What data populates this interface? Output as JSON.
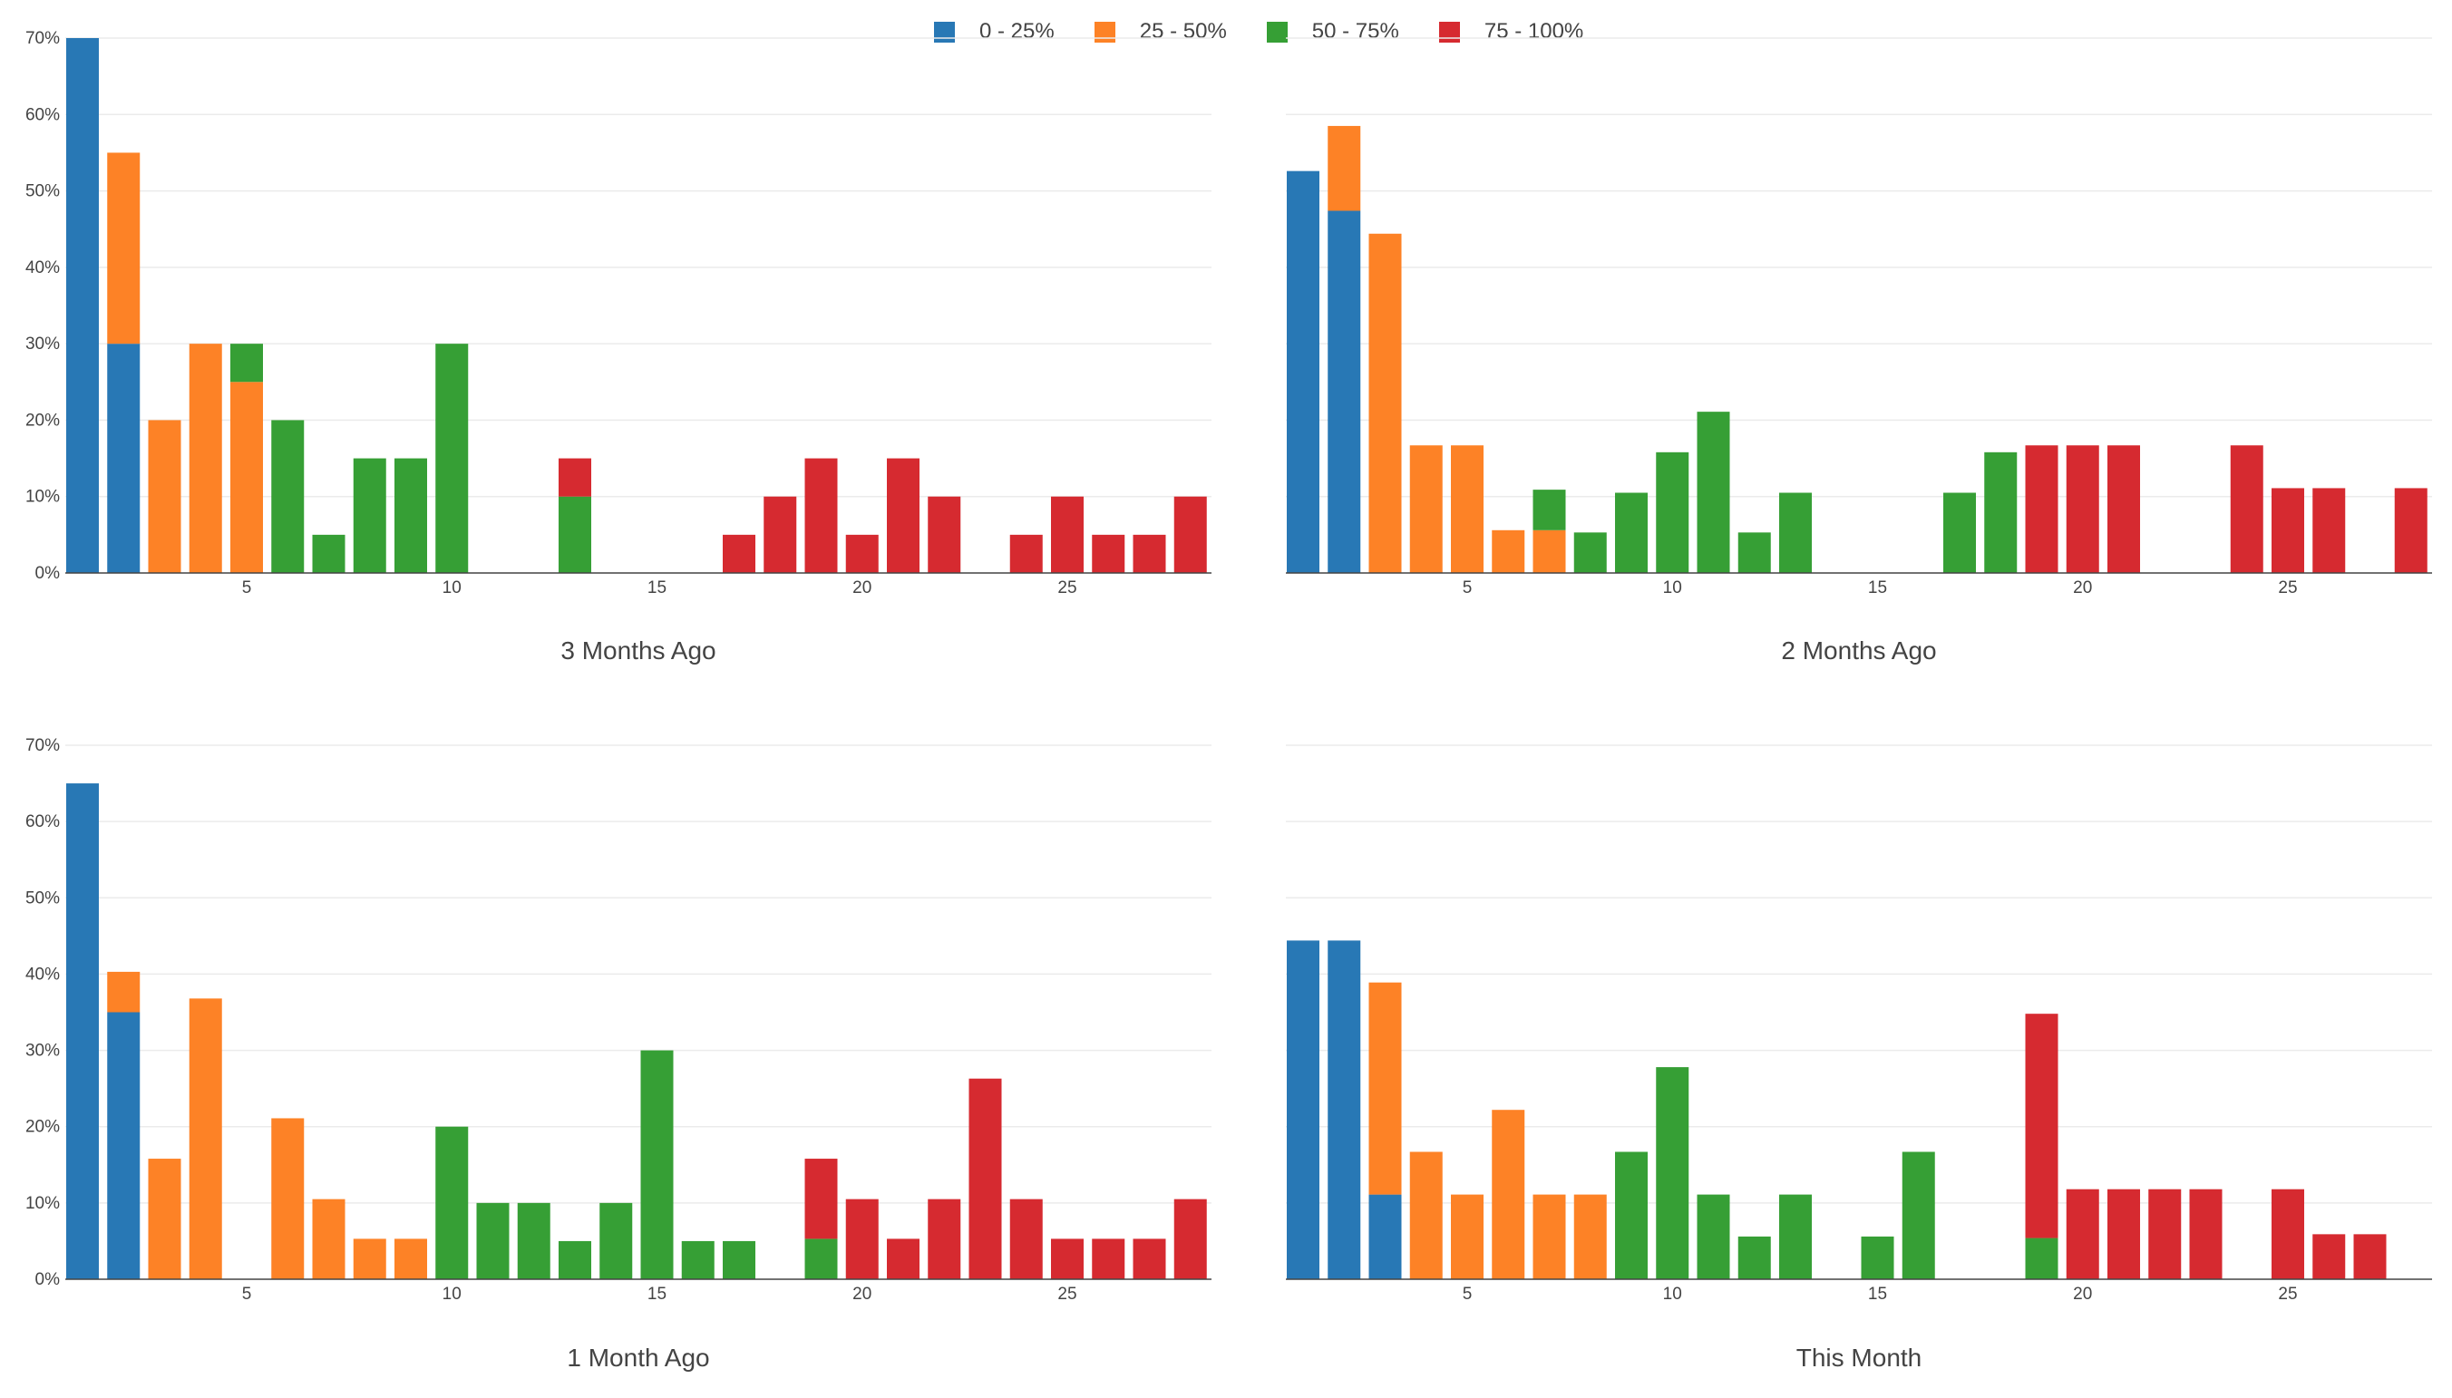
{
  "legend": {
    "items": [
      {
        "label": "0 - 25%",
        "color": "#2878b5"
      },
      {
        "label": "25 - 50%",
        "color": "#fd8226"
      },
      {
        "label": "50 - 75%",
        "color": "#369f35"
      },
      {
        "label": "75 - 100%",
        "color": "#d62a30"
      }
    ]
  },
  "chart_data": [
    {
      "type": "bar",
      "title": "3 Months Ago",
      "x": [
        1,
        2,
        3,
        4,
        5,
        6,
        7,
        8,
        9,
        10,
        11,
        12,
        13,
        14,
        15,
        16,
        17,
        18,
        19,
        20,
        21,
        22,
        23,
        24,
        25,
        26,
        27,
        28
      ],
      "x_ticks": [
        5,
        10,
        15,
        20,
        25
      ],
      "y_ticks": [
        "0%",
        "10%",
        "20%",
        "30%",
        "40%",
        "50%",
        "60%",
        "70%"
      ],
      "ylim": [
        0,
        70
      ],
      "barmode": "stack",
      "series": [
        {
          "name": "0 - 25%",
          "values": [
            70,
            30,
            0,
            0,
            0,
            0,
            0,
            0,
            0,
            0,
            0,
            0,
            0,
            0,
            0,
            0,
            0,
            0,
            0,
            0,
            0,
            0,
            0,
            0,
            0,
            0,
            0,
            0
          ]
        },
        {
          "name": "25 - 50%",
          "values": [
            0,
            25,
            20,
            30,
            25,
            0,
            0,
            0,
            0,
            0,
            0,
            0,
            0,
            0,
            0,
            0,
            0,
            0,
            0,
            0,
            0,
            0,
            0,
            0,
            0,
            0,
            0,
            0
          ]
        },
        {
          "name": "50 - 75%",
          "values": [
            0,
            0,
            0,
            0,
            5,
            20,
            5,
            15,
            15,
            30,
            0,
            0,
            10,
            0,
            0,
            0,
            0,
            0,
            0,
            0,
            0,
            0,
            0,
            0,
            0,
            0,
            0,
            0
          ]
        },
        {
          "name": "75 - 100%",
          "values": [
            0,
            0,
            0,
            0,
            0,
            0,
            0,
            0,
            0,
            0,
            0,
            0,
            5,
            0,
            0,
            0,
            5,
            10,
            15,
            5,
            15,
            10,
            0,
            5,
            10,
            5,
            5,
            10
          ]
        }
      ]
    },
    {
      "type": "bar",
      "title": "2 Months Ago",
      "x": [
        1,
        2,
        3,
        4,
        5,
        6,
        7,
        8,
        9,
        10,
        11,
        12,
        13,
        14,
        15,
        16,
        17,
        18,
        19,
        20,
        21,
        22,
        23,
        24,
        25,
        26,
        27,
        28
      ],
      "x_ticks": [
        5,
        10,
        15,
        20,
        25
      ],
      "ylim": [
        0,
        70
      ],
      "barmode": "stack",
      "series": [
        {
          "name": "0 - 25%",
          "values": [
            52.6,
            47.4,
            0,
            0,
            0,
            0,
            0,
            0,
            0,
            0,
            0,
            0,
            0,
            0,
            0,
            0,
            0,
            0,
            0,
            0,
            0,
            0,
            0,
            0,
            0,
            0,
            0,
            0
          ]
        },
        {
          "name": "25 - 50%",
          "values": [
            0,
            11.1,
            44.4,
            16.7,
            16.7,
            5.6,
            5.6,
            0,
            0,
            0,
            0,
            0,
            0,
            0,
            0,
            0,
            0,
            0,
            0,
            0,
            0,
            0,
            0,
            0,
            0,
            0,
            0,
            0
          ]
        },
        {
          "name": "50 - 75%",
          "values": [
            0,
            0,
            0,
            0,
            0,
            0,
            5.3,
            5.3,
            10.5,
            15.8,
            21.1,
            5.3,
            10.5,
            0,
            0,
            0,
            10.5,
            15.8,
            0,
            0,
            0,
            0,
            0,
            0,
            0,
            0,
            0,
            0
          ]
        },
        {
          "name": "75 - 100%",
          "values": [
            0,
            0,
            0,
            0,
            0,
            0,
            0,
            0,
            0,
            0,
            0,
            0,
            0,
            0,
            0,
            0,
            0,
            0,
            16.7,
            16.7,
            16.7,
            0,
            0,
            16.7,
            11.1,
            11.1,
            0,
            11.1
          ]
        }
      ]
    },
    {
      "type": "bar",
      "title": "1 Month Ago",
      "x": [
        1,
        2,
        3,
        4,
        5,
        6,
        7,
        8,
        9,
        10,
        11,
        12,
        13,
        14,
        15,
        16,
        17,
        18,
        19,
        20,
        21,
        22,
        23,
        24,
        25,
        26,
        27,
        28
      ],
      "x_ticks": [
        5,
        10,
        15,
        20,
        25
      ],
      "y_ticks": [
        "0%",
        "10%",
        "20%",
        "30%",
        "40%",
        "50%",
        "60%",
        "70%"
      ],
      "ylim": [
        0,
        70
      ],
      "barmode": "stack",
      "series": [
        {
          "name": "0 - 25%",
          "values": [
            65,
            35,
            0,
            0,
            0,
            0,
            0,
            0,
            0,
            0,
            0,
            0,
            0,
            0,
            0,
            0,
            0,
            0,
            0,
            0,
            0,
            0,
            0,
            0,
            0,
            0,
            0,
            0
          ]
        },
        {
          "name": "25 - 50%",
          "values": [
            0,
            5.3,
            15.8,
            36.8,
            0,
            21.1,
            10.5,
            5.3,
            5.3,
            0,
            0,
            0,
            0,
            0,
            0,
            0,
            0,
            0,
            0,
            0,
            0,
            0,
            0,
            0,
            0,
            0,
            0,
            0
          ]
        },
        {
          "name": "50 - 75%",
          "values": [
            0,
            0,
            0,
            0,
            0,
            0,
            0,
            0,
            0,
            20,
            10,
            10,
            5,
            10,
            30,
            5,
            5,
            0,
            5.3,
            0,
            0,
            0,
            0,
            0,
            0,
            0,
            0,
            0
          ]
        },
        {
          "name": "75 - 100%",
          "values": [
            0,
            0,
            0,
            0,
            0,
            0,
            0,
            0,
            0,
            0,
            0,
            0,
            0,
            0,
            0,
            0,
            0,
            0,
            10.5,
            10.5,
            5.3,
            10.5,
            26.3,
            10.5,
            5.3,
            5.3,
            5.3,
            10.5
          ]
        }
      ]
    },
    {
      "type": "bar",
      "title": "This Month",
      "x": [
        1,
        2,
        3,
        4,
        5,
        6,
        7,
        8,
        9,
        10,
        11,
        12,
        13,
        14,
        15,
        16,
        17,
        18,
        19,
        20,
        21,
        22,
        23,
        24,
        25,
        26,
        27,
        28
      ],
      "x_ticks": [
        5,
        10,
        15,
        20,
        25
      ],
      "ylim": [
        0,
        70
      ],
      "barmode": "stack",
      "series": [
        {
          "name": "0 - 25%",
          "values": [
            44.4,
            44.4,
            11.1,
            0,
            0,
            0,
            0,
            0,
            0,
            0,
            0,
            0,
            0,
            0,
            0,
            0,
            0,
            0,
            0,
            0,
            0,
            0,
            0,
            0,
            0,
            0,
            0,
            0
          ]
        },
        {
          "name": "25 - 50%",
          "values": [
            0,
            0,
            27.8,
            16.7,
            11.1,
            22.2,
            11.1,
            11.1,
            0,
            0,
            0,
            0,
            0,
            0,
            0,
            0,
            0,
            0,
            0,
            0,
            0,
            0,
            0,
            0,
            0,
            0,
            0,
            0
          ]
        },
        {
          "name": "50 - 75%",
          "values": [
            0,
            0,
            0,
            0,
            0,
            0,
            0,
            0,
            16.7,
            27.8,
            11.1,
            5.6,
            11.1,
            0,
            5.6,
            16.7,
            0,
            0,
            5.4,
            0,
            0,
            0,
            0,
            0,
            0,
            0,
            0,
            0
          ]
        },
        {
          "name": "75 - 100%",
          "values": [
            0,
            0,
            0,
            0,
            0,
            0,
            0,
            0,
            0,
            0,
            0,
            0,
            0,
            0,
            0,
            0,
            0,
            0,
            29.4,
            11.8,
            11.8,
            11.8,
            11.8,
            0,
            11.8,
            5.9,
            5.9,
            0
          ]
        }
      ]
    }
  ]
}
